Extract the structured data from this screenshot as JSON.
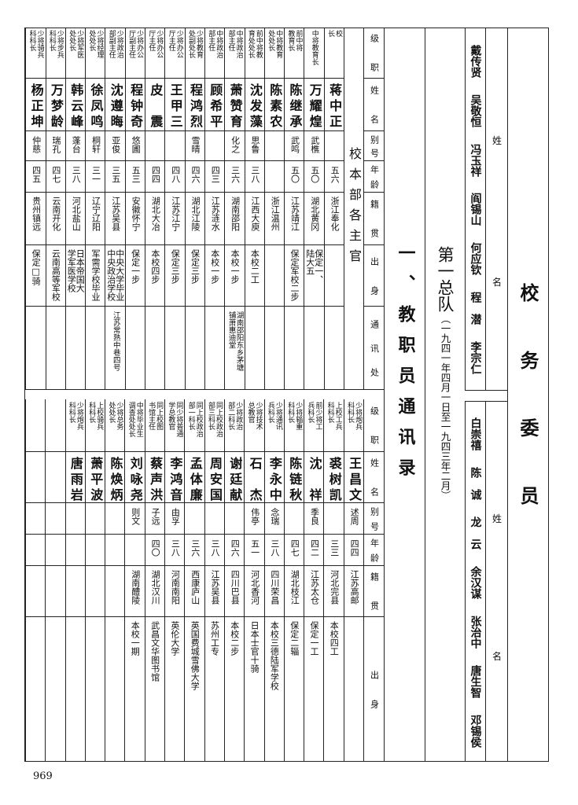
{
  "committee": {
    "title": "校务委员",
    "name_label_top": "姓",
    "name_label_bottom": "名",
    "members_top": [
      "戴传贤",
      "吴敬恒",
      "冯玉祥",
      "阎锡山",
      "何应钦",
      "程　潜",
      "李宗仁"
    ],
    "members_bottom": [
      "白崇禧",
      "陈　诚",
      "龙　云",
      "余汉谋",
      "张治中",
      "唐生智",
      "邓锡侯"
    ]
  },
  "unit_title": {
    "main": "第一总队",
    "period": "（一九四一年四月一日至一九四三年二月）"
  },
  "section_title": "一、教职员通讯录",
  "headers_top": [
    "级职",
    "姓名",
    "别号",
    "年龄",
    "籍贯",
    "出身",
    "通讯处"
  ],
  "headers_bottom": [
    "级职",
    "姓名",
    "别号",
    "年龄",
    "籍贯",
    "出身"
  ],
  "group_label": "校本部各主官",
  "staff_top": [
    {
      "rank": "校\n长",
      "name": "蒋中正",
      "alias": "",
      "age": "五六",
      "origin": "浙江奉化",
      "edu": "",
      "addr": ""
    },
    {
      "rank": "中将教育长",
      "name": "万耀煌",
      "alias": "武樵",
      "age": "五〇",
      "origin": "湖北黄冈",
      "edu": "保定一、\n陆大五",
      "addr": ""
    },
    {
      "rank": "前中将\n教育长",
      "name": "陈继承",
      "alias": "武鸣",
      "age": "五〇",
      "origin": "江苏靖江",
      "edu": "保定军校二步",
      "addr": ""
    },
    {
      "rank": "中将教育\n处处长",
      "name": "陈素农",
      "alias": "",
      "age": "",
      "origin": "浙江温州",
      "edu": "",
      "addr": ""
    },
    {
      "rank": "前中将教\n育处处长",
      "name": "沈发藻",
      "alias": "思鲁",
      "age": "三八",
      "origin": "江西大庾",
      "edu": "本校二工",
      "addr": ""
    },
    {
      "rank": "中将政治\n部主任",
      "name": "萧赞育",
      "alias": "化之",
      "age": "三六",
      "origin": "湖南邵阳",
      "edu": "本校一步",
      "addr": "湖南邵阳东乡茅塘\n铺萧惠迪堂"
    },
    {
      "rank": "中将政治\n部主任",
      "name": "顾希平",
      "alias": "",
      "age": "四三",
      "origin": "江苏涟水",
      "edu": "本校一步",
      "addr": ""
    },
    {
      "rank": "少将教育\n处副处长",
      "name": "程鸿烈",
      "alias": "雪晴",
      "age": "四六",
      "origin": "湖北江陵",
      "edu": "保定三步",
      "addr": ""
    },
    {
      "rank": "少将办公\n厅主任",
      "name": "王甲三",
      "alias": "",
      "age": "四八",
      "origin": "江苏江宁",
      "edu": "保定三步",
      "addr": ""
    },
    {
      "rank": "少将办公\n厅主任",
      "name": "皮　震",
      "alias": "",
      "age": "四四",
      "origin": "湖北大冶",
      "edu": "本校四步",
      "addr": ""
    },
    {
      "rank": "少将办公\n厅副主任",
      "name": "程钟奇",
      "alias": "悠圃",
      "age": "五三",
      "origin": "安徽怀宁",
      "edu": "保定一步",
      "addr": ""
    },
    {
      "rank": "少将政治\n部副主任",
      "name": "沈遵晦",
      "alias": "亚俊",
      "age": "三五",
      "origin": "江苏吴县",
      "edu": "中央大学毕业\n中央政治学校",
      "addr": "江苏常熟中巷四号"
    },
    {
      "rank": "少将经理\n处处长",
      "name": "徐凤鸣",
      "alias": "桐轩",
      "age": "三一",
      "origin": "辽宁辽阳",
      "edu": "军需学校毕业",
      "addr": ""
    },
    {
      "rank": "少将军医\n处处长",
      "name": "韩云峰",
      "alias": "蓬台",
      "age": "三八",
      "origin": "河北盐山",
      "edu": "日本帝国大\n学军医学校",
      "addr": ""
    },
    {
      "rank": "少将步兵\n科科长",
      "name": "万梦龄",
      "alias": "瑞孔",
      "age": "四七",
      "origin": "云南开化",
      "edu": "云南高等军校",
      "addr": ""
    },
    {
      "rank": "少将骑兵\n科科长",
      "name": "杨正坤",
      "alias": "仲慈",
      "age": "四五",
      "origin": "贵州镇远",
      "edu": "保定□骑",
      "addr": ""
    }
  ],
  "staff_bottom": [
    {
      "rank": "少将炮兵\n科科长",
      "name": "王昌文",
      "alias": "述周",
      "age": "四四",
      "origin": "江苏高邮",
      "edu": ""
    },
    {
      "rank": "上校工兵\n科科长",
      "name": "裘树凯",
      "alias": "",
      "age": "三三",
      "origin": "河北完县",
      "edu": "本校四工"
    },
    {
      "rank": "前少将工\n兵科长",
      "name": "沈　祥",
      "alias": "季良",
      "age": "四二",
      "origin": "江苏太仓",
      "edu": "保定一工"
    },
    {
      "rank": "少将辎重\n科科长",
      "name": "陈链秋",
      "alias": "",
      "age": "四七",
      "origin": "湖北枝江",
      "edu": "保定二辎"
    },
    {
      "rank": "少将通讯\n兵科长",
      "name": "李永中",
      "alias": "念瑞",
      "age": "三八",
      "origin": "四川荣昌",
      "edu": "本校三德陆军学校"
    },
    {
      "rank": "少将技术\n总教官",
      "name": "石　杰",
      "alias": "伟亭",
      "age": "五一",
      "origin": "河北香河",
      "edu": "日本士官十骑"
    },
    {
      "rank": "少将政治\n部二科长",
      "name": "谢廷献",
      "alias": "",
      "age": "四六",
      "origin": "四川巴县",
      "edu": "本校二步"
    },
    {
      "rank": "同上校政治\n部三科长",
      "name": "周安国",
      "alias": "",
      "age": "三八",
      "origin": "江苏吴县",
      "edu": "苏州工专"
    },
    {
      "rank": "同上校政治\n部一科长",
      "name": "孟体廉",
      "alias": "",
      "age": "三六",
      "origin": "西康庐山",
      "edu": "英国费城雪佛大学"
    },
    {
      "rank": "同少将普通\n学总教官",
      "name": "李鸿音",
      "alias": "由孚",
      "age": "三八",
      "origin": "河南南阳",
      "edu": "英伦大学"
    },
    {
      "rank": "同上校图\n书馆主任",
      "name": "蔡声洪",
      "alias": "子远",
      "age": "四〇",
      "origin": "湖北汉川",
      "edu": "武昌文华图书馆"
    },
    {
      "rank": "中将毕业生\n调查处处长",
      "name": "刘咏尧",
      "alias": "则文",
      "age": "",
      "origin": "湖南醴陵",
      "edu": "本校一期"
    },
    {
      "rank": "少将总务\n处处长",
      "name": "陈焕炳",
      "alias": "",
      "age": "",
      "origin": "",
      "edu": ""
    },
    {
      "rank": "上校骑兵\n科科长",
      "name": "萧平波",
      "alias": "",
      "age": "",
      "origin": "",
      "edu": ""
    },
    {
      "rank": "少将炮兵\n科科长",
      "name": "唐雨岩",
      "alias": "",
      "age": "",
      "origin": "",
      "edu": ""
    },
    {
      "rank": "",
      "name": "",
      "alias": "",
      "age": "",
      "origin": "",
      "edu": ""
    },
    {
      "rank": "",
      "name": "",
      "alias": "",
      "age": "",
      "origin": "",
      "edu": ""
    }
  ],
  "page_number": "969"
}
